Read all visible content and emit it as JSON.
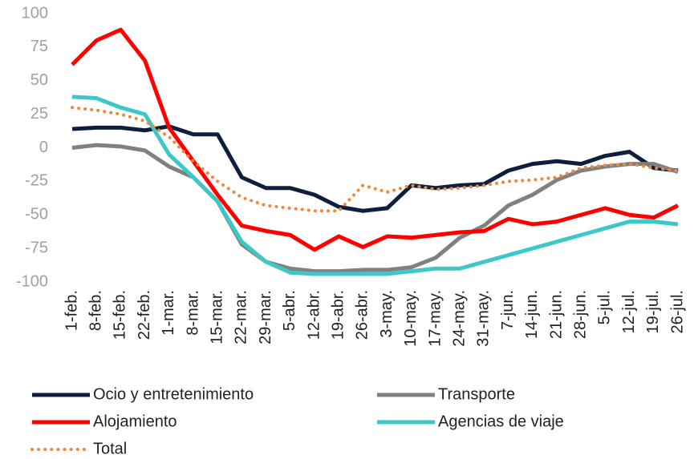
{
  "chart_data": {
    "type": "line",
    "categories": [
      "1-feb.",
      "8-feb.",
      "15-feb.",
      "22-feb.",
      "1-mar.",
      "8-mar.",
      "15-mar.",
      "22-mar.",
      "29-mar.",
      "5-abr.",
      "12-abr.",
      "19-abr.",
      "26-abr.",
      "3-may.",
      "10-may.",
      "17-may.",
      "24-may.",
      "31-may.",
      "7-jun.",
      "14-jun.",
      "21-jun.",
      "28-jun.",
      "5-jul.",
      "12-jul.",
      "19-jul.",
      "26-jul."
    ],
    "series": [
      {
        "name": "Ocio y entretenimiento",
        "color": "#0d1f3c",
        "values": [
          14,
          15,
          15,
          13,
          16,
          10,
          10,
          -22,
          -30,
          -30,
          -35,
          -44,
          -47,
          -45,
          -28,
          -30,
          -28,
          -27,
          -17,
          -12,
          -10,
          -12,
          -6,
          -3,
          -15,
          -17
        ]
      },
      {
        "name": "Transporte",
        "color": "#808080",
        "values": [
          0,
          2,
          1,
          -2,
          -14,
          -22,
          -40,
          -72,
          -85,
          -90,
          -92,
          -92,
          -91,
          -91,
          -89,
          -82,
          -67,
          -58,
          -43,
          -35,
          -24,
          -17,
          -14,
          -12,
          -12,
          -18
        ]
      },
      {
        "name": "Alojamiento",
        "color": "#ff0000",
        "values": [
          62,
          80,
          88,
          65,
          15,
          -10,
          -35,
          -58,
          -62,
          -65,
          -76,
          -66,
          -74,
          -66,
          -67,
          -65,
          -63,
          -62,
          -53,
          -57,
          -55,
          -50,
          -45,
          -50,
          -52,
          -43
        ]
      },
      {
        "name": "Agencias de viaje",
        "color": "#3cc8c8",
        "values": [
          38,
          37,
          30,
          25,
          -5,
          -22,
          -40,
          -70,
          -85,
          -93,
          -94,
          -94,
          -94,
          -94,
          -92,
          -90,
          -90,
          -85,
          -80,
          -75,
          -70,
          -65,
          -60,
          -55,
          -55,
          -57
        ]
      },
      {
        "name": "Total",
        "color": "#f0883c",
        "dashed": true,
        "values": [
          30,
          28,
          25,
          20,
          8,
          -10,
          -25,
          -37,
          -43,
          -45,
          -47,
          -47,
          -28,
          -33,
          -28,
          -31,
          -30,
          -28,
          -25,
          -24,
          -22,
          -15,
          -13,
          -12,
          -15,
          -17
        ]
      }
    ],
    "ylim": [
      -100,
      100
    ],
    "yticks": [
      -100,
      -75,
      -50,
      -25,
      0,
      25,
      50,
      75,
      100
    ],
    "grid": false,
    "legend_position": "bottom"
  }
}
